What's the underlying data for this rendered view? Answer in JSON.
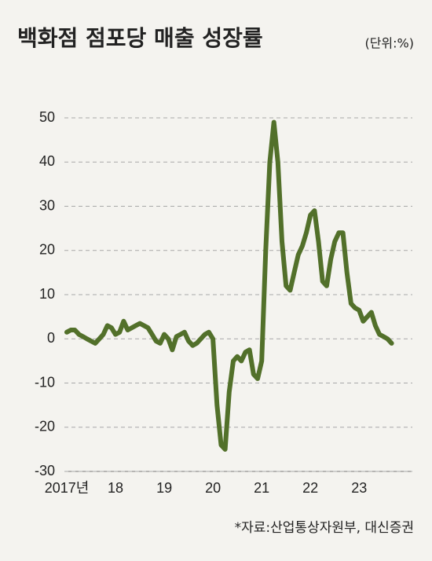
{
  "chart_data": {
    "type": "line",
    "title": "백화점 점포당 매출 성장률",
    "unit": "(단위:%)",
    "source": "*자료:산업통상자원부, 대신증권",
    "categories": [
      "2017년",
      null,
      null,
      null,
      null,
      null,
      null,
      null,
      null,
      null,
      null,
      null,
      "18",
      null,
      null,
      null,
      null,
      null,
      null,
      null,
      null,
      null,
      null,
      null,
      "19",
      null,
      null,
      null,
      null,
      null,
      null,
      null,
      null,
      null,
      null,
      null,
      "20",
      null,
      null,
      null,
      null,
      null,
      null,
      null,
      null,
      null,
      null,
      null,
      "21",
      null,
      null,
      null,
      null,
      null,
      null,
      null,
      null,
      null,
      null,
      null,
      "22",
      null,
      null,
      null,
      null,
      null,
      null,
      null,
      null,
      null,
      null,
      null,
      "23",
      null,
      null,
      null,
      null,
      null,
      null,
      null,
      null
    ],
    "series": [
      {
        "name": "매출 성장률",
        "color": "#52702a",
        "values": [
          1.5,
          2,
          2,
          1,
          0.5,
          0,
          -0.5,
          -1,
          0,
          1,
          3,
          2.5,
          1,
          1.5,
          4,
          2,
          2.5,
          3,
          3.5,
          3,
          2.5,
          1,
          -0.5,
          -1,
          1,
          0,
          -2.5,
          0.5,
          1,
          1.5,
          -0.5,
          -1.5,
          -1,
          0,
          1,
          1.5,
          0,
          -15,
          -24,
          -25,
          -12,
          -5,
          -4,
          -5,
          -3,
          -2.5,
          -8,
          -9,
          -5,
          20,
          40,
          49,
          40,
          22,
          12,
          11,
          15,
          19,
          21,
          24,
          28,
          29,
          22,
          13,
          12,
          18,
          22,
          24,
          24,
          15,
          8,
          7,
          6.5,
          4,
          5,
          6,
          3,
          1,
          0.5,
          0,
          -1
        ]
      }
    ],
    "ylim": [
      -30,
      50
    ],
    "yticks": [
      -30,
      -20,
      -10,
      0,
      10,
      20,
      30,
      40,
      50
    ],
    "grid": true
  }
}
